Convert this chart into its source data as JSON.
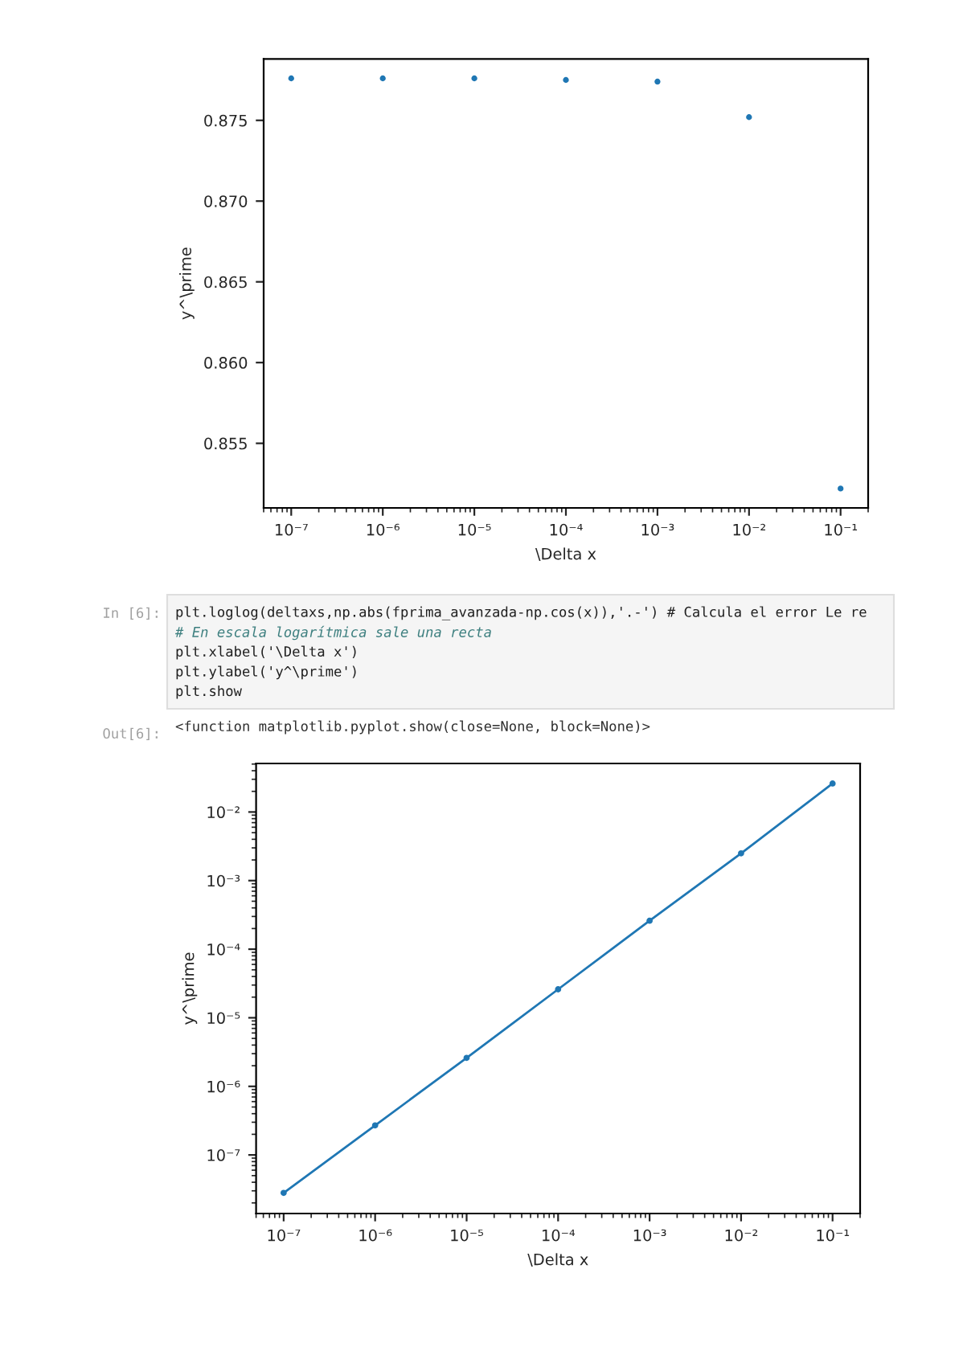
{
  "chart_data": [
    {
      "type": "scatter",
      "xlabel": "\\Delta x",
      "ylabel": "y^\\prime",
      "x": [
        1e-07,
        1e-06,
        1e-05,
        0.0001,
        0.001,
        0.01,
        0.1
      ],
      "series": [
        {
          "color": "#1f77b4",
          "values": [
            0.8776,
            0.8776,
            0.8776,
            0.8775,
            0.8774,
            0.8752,
            0.8522
          ]
        }
      ],
      "log": "x",
      "marker": "circle",
      "xlim": [
        5e-08,
        0.2
      ],
      "xticks": [
        {
          "value": 1e-07,
          "label": "10⁻⁷"
        },
        {
          "value": 1e-06,
          "label": "10⁻⁶"
        },
        {
          "value": 1e-05,
          "label": "10⁻⁵"
        },
        {
          "value": 0.0001,
          "label": "10⁻⁴"
        },
        {
          "value": 0.001,
          "label": "10⁻³"
        },
        {
          "value": 0.01,
          "label": "10⁻²"
        },
        {
          "value": 0.1,
          "label": "10⁻¹"
        }
      ],
      "ylim": [
        0.851,
        0.8788
      ],
      "yticks": [
        0.855,
        {
          "value": 0.86,
          "label": "0.860"
        },
        0.865,
        {
          "value": 0.87,
          "label": "0.870"
        },
        0.875
      ]
    },
    {
      "type": "line",
      "xlabel": "\\Delta x",
      "ylabel": "y^\\prime",
      "x": [
        1e-07,
        1e-06,
        1e-05,
        0.0001,
        0.001,
        0.01,
        0.1
      ],
      "series": [
        {
          "color": "#1f77b4",
          "values": [
            2.8e-08,
            2.7e-07,
            2.6e-06,
            2.6e-05,
            0.00026,
            0.0025,
            0.026
          ]
        }
      ],
      "log": "xy",
      "marker": "circle",
      "line_style": "solid",
      "xlim": [
        5e-08,
        0.2
      ],
      "xticks": [
        {
          "value": 1e-07,
          "label": "10⁻⁷"
        },
        {
          "value": 1e-06,
          "label": "10⁻⁶"
        },
        {
          "value": 1e-05,
          "label": "10⁻⁵"
        },
        {
          "value": 0.0001,
          "label": "10⁻⁴"
        },
        {
          "value": 0.001,
          "label": "10⁻³"
        },
        {
          "value": 0.01,
          "label": "10⁻²"
        },
        {
          "value": 0.1,
          "label": "10⁻¹"
        }
      ],
      "ylim": [
        1.4e-08,
        0.051
      ],
      "yticks": [
        {
          "value": 1e-07,
          "label": "10⁻⁷"
        },
        {
          "value": 1e-06,
          "label": "10⁻⁶"
        },
        {
          "value": 1e-05,
          "label": "10⁻⁵"
        },
        {
          "value": 0.0001,
          "label": "10⁻⁴"
        },
        {
          "value": 0.001,
          "label": "10⁻³"
        },
        {
          "value": 0.01,
          "label": "10⁻²"
        }
      ],
      "annotations": [
        "In [6]:",
        "plt.loglog(deltaxs,np.abs(fprima_avanzada-np.cos(x)),'.-') # Calcula el error Le re",
        "# En escala logarítmica sale una recta",
        "plt.xlabel('\\Delta x')",
        "plt.ylabel('y^\\prime')",
        "plt.show",
        "Out[6]:",
        "<function matplotlib.pyplot.show(close=None, block=None)>"
      ]
    }
  ]
}
